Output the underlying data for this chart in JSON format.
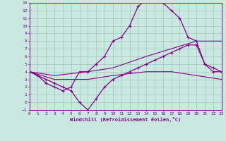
{
  "xlabel": "Windchill (Refroidissement éolien,°C)",
  "xlim": [
    0,
    23
  ],
  "ylim": [
    -1,
    13
  ],
  "xticks": [
    0,
    1,
    2,
    3,
    4,
    5,
    6,
    7,
    8,
    9,
    10,
    11,
    12,
    13,
    14,
    15,
    16,
    17,
    18,
    19,
    20,
    21,
    22,
    23
  ],
  "yticks": [
    -1,
    0,
    1,
    2,
    3,
    4,
    5,
    6,
    7,
    8,
    9,
    10,
    11,
    12,
    13
  ],
  "bg_color": "#c8e8e0",
  "line_color": "#880088",
  "grid_color": "#a0c8c0",
  "curves": [
    {
      "x": [
        0,
        1,
        2,
        3,
        4,
        5,
        6,
        7,
        8,
        9,
        10,
        11,
        12,
        13,
        14,
        15,
        16,
        17,
        18,
        19,
        20,
        21,
        22,
        23
      ],
      "y": [
        4,
        3.5,
        2.5,
        2,
        1.5,
        2,
        4,
        4,
        5,
        6,
        8,
        8.5,
        10,
        12.5,
        13.5,
        13.5,
        13,
        12,
        11,
        8.5,
        8,
        5,
        4.5,
        4
      ],
      "marker": true,
      "lw": 0.9
    },
    {
      "x": [
        0,
        1,
        2,
        3,
        4,
        5,
        6,
        7,
        8,
        9,
        10,
        11,
        12,
        13,
        14,
        15,
        16,
        17,
        18,
        19,
        20,
        21,
        22,
        23
      ],
      "y": [
        4,
        3.5,
        3,
        2.5,
        2,
        1.5,
        0,
        -1,
        0.5,
        2,
        3,
        3.5,
        4,
        4.5,
        5,
        5.5,
        6,
        6.5,
        7,
        7.5,
        7.5,
        5,
        4,
        4
      ],
      "marker": true,
      "lw": 0.9
    },
    {
      "x": [
        0,
        3,
        7,
        10,
        14,
        17,
        20,
        23
      ],
      "y": [
        4,
        3.5,
        4,
        4.5,
        6,
        7,
        8,
        8
      ],
      "marker": false,
      "lw": 0.8
    },
    {
      "x": [
        0,
        3,
        7,
        10,
        14,
        17,
        20,
        23
      ],
      "y": [
        4,
        3,
        3,
        3.5,
        4,
        4,
        3.5,
        3
      ],
      "marker": false,
      "lw": 0.8
    }
  ]
}
